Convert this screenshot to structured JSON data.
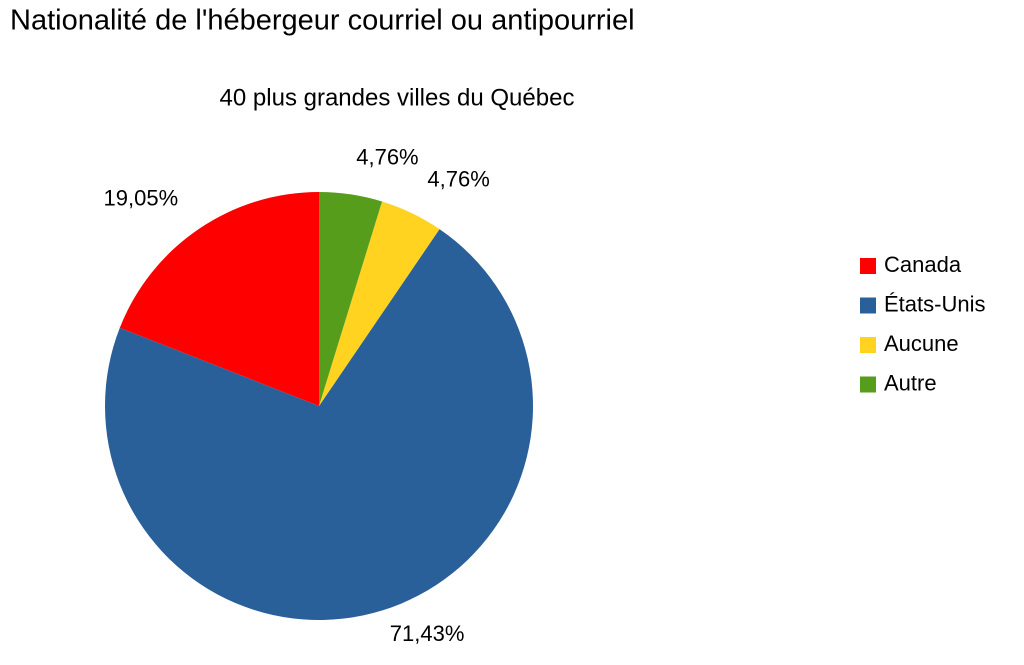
{
  "chart_data": {
    "type": "pie",
    "title": "Nationalité de l'hébergeur courriel ou antipourriel",
    "subtitle": "40 plus grandes villes du Québec",
    "categories": [
      "Canada",
      "États-Unis",
      "Aucune",
      "Autre"
    ],
    "values": [
      19.05,
      71.43,
      4.76,
      4.76
    ],
    "value_labels": [
      "19,05%",
      "71,43%",
      "4,76%",
      "4,76%"
    ],
    "colors": [
      "#ff0000",
      "#2a6099",
      "#ffd320",
      "#579d1c"
    ],
    "legend": "right"
  }
}
